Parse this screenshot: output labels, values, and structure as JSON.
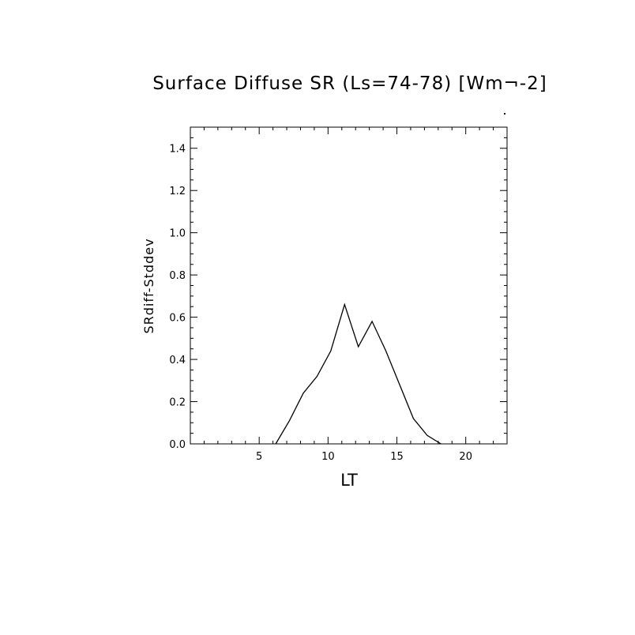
{
  "chart_data": {
    "type": "line",
    "title": "Surface Diffuse SR (Ls=74-78) [Wm¬-2]",
    "xlabel": "LT",
    "ylabel": "SRdiff-Stddev",
    "xlim": [
      0,
      23
    ],
    "ylim": [
      0,
      1.5
    ],
    "xticks": [
      5,
      10,
      15,
      20
    ],
    "xtick_labels": [
      "5",
      "10",
      "15",
      "20"
    ],
    "yticks": [
      0.0,
      0.2,
      0.4,
      0.6,
      0.8,
      1.0,
      1.2,
      1.4
    ],
    "ytick_labels": [
      "0.0",
      "0.2",
      "0.4",
      "0.6",
      "0.8",
      "1.0",
      "1.2",
      "1.4"
    ],
    "grid": false,
    "series": [
      {
        "x": [
          6.2,
          7.2,
          8.2,
          9.2,
          10.2,
          11.2,
          12.2,
          13.2,
          14.2,
          15.2,
          16.2,
          17.2,
          18.2
        ],
        "y": [
          0.0,
          0.11,
          0.24,
          0.32,
          0.44,
          0.66,
          0.46,
          0.58,
          0.44,
          0.28,
          0.12,
          0.04,
          0.0
        ]
      }
    ]
  }
}
